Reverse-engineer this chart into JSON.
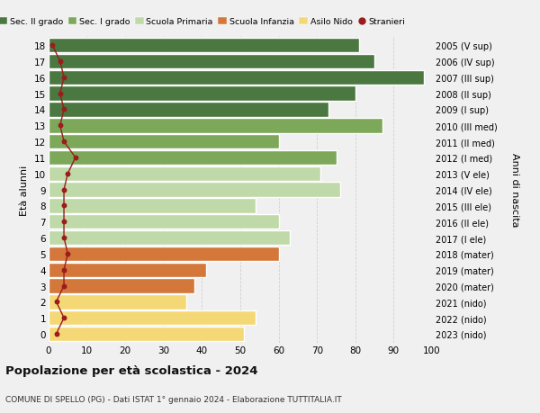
{
  "ages": [
    18,
    17,
    16,
    15,
    14,
    13,
    12,
    11,
    10,
    9,
    8,
    7,
    6,
    5,
    4,
    3,
    2,
    1,
    0
  ],
  "bar_values": [
    81,
    85,
    98,
    80,
    73,
    87,
    60,
    75,
    71,
    76,
    54,
    60,
    63,
    60,
    41,
    38,
    36,
    54,
    51
  ],
  "stranieri_values": [
    1,
    3,
    4,
    3,
    4,
    3,
    4,
    7,
    5,
    4,
    4,
    4,
    4,
    5,
    4,
    4,
    2,
    4,
    2
  ],
  "right_labels": [
    "2005 (V sup)",
    "2006 (IV sup)",
    "2007 (III sup)",
    "2008 (II sup)",
    "2009 (I sup)",
    "2010 (III med)",
    "2011 (II med)",
    "2012 (I med)",
    "2013 (V ele)",
    "2014 (IV ele)",
    "2015 (III ele)",
    "2016 (II ele)",
    "2017 (I ele)",
    "2018 (mater)",
    "2019 (mater)",
    "2020 (mater)",
    "2021 (nido)",
    "2022 (nido)",
    "2023 (nido)"
  ],
  "bar_colors": [
    "#4a7840",
    "#4a7840",
    "#4a7840",
    "#4a7840",
    "#4a7840",
    "#7da85a",
    "#7da85a",
    "#7da85a",
    "#c0d9a8",
    "#c0d9a8",
    "#c0d9a8",
    "#c0d9a8",
    "#c0d9a8",
    "#d4773a",
    "#d4773a",
    "#d4773a",
    "#f5d876",
    "#f5d876",
    "#f5d876"
  ],
  "legend_labels": [
    "Sec. II grado",
    "Sec. I grado",
    "Scuola Primaria",
    "Scuola Infanzia",
    "Asilo Nido",
    "Stranieri"
  ],
  "legend_colors": [
    "#4a7840",
    "#7da85a",
    "#c0d9a8",
    "#d4773a",
    "#f5d876",
    "#a02020"
  ],
  "title": "Popolazione per età scolastica - 2024",
  "subtitle": "COMUNE DI SPELLO (PG) - Dati ISTAT 1° gennaio 2024 - Elaborazione TUTTITALIA.IT",
  "ylabel": "Età alunni",
  "right_ylabel": "Anni di nascita",
  "xlim": [
    0,
    100
  ],
  "bg_color": "#f0f0f0",
  "stranieri_color": "#9b1c1c",
  "grid_color": "#d0d0d0"
}
